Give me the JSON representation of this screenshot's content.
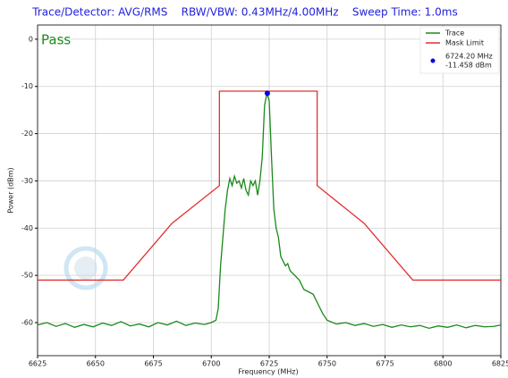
{
  "chart_data": {
    "type": "line",
    "title": "Trace/Detector: AVG/RMS    RBW/VBW: 0.43MHz/4.00MHz    Sweep Time: 1.0ms",
    "xlabel": "Frequency (MHz)",
    "ylabel": "Power (dBm)",
    "status_text": "Pass",
    "status_color": "#1e8c1e",
    "xlim": [
      6625,
      6825
    ],
    "xticks": [
      6625,
      6650,
      6675,
      6700,
      6725,
      6750,
      6775,
      6800,
      6825
    ],
    "ylim": [
      -67,
      3
    ],
    "yticks": [
      0,
      -10,
      -20,
      -30,
      -40,
      -50,
      -60
    ],
    "grid": true,
    "legend": "upper right",
    "series": [
      {
        "name": "Trace",
        "color": "#1a8a1a",
        "x": [
          6625,
          6629,
          6633,
          6637,
          6641,
          6645,
          6649,
          6653,
          6657,
          6661,
          6665,
          6669,
          6673,
          6677,
          6681,
          6685,
          6689,
          6693,
          6697,
          6700,
          6702,
          6703,
          6704,
          6705,
          6706,
          6707,
          6708,
          6709,
          6710,
          6711,
          6712,
          6713,
          6714,
          6715,
          6716,
          6717,
          6718,
          6719,
          6720,
          6721,
          6722,
          6723,
          6724,
          6725,
          6726,
          6727,
          6728,
          6729,
          6730,
          6731,
          6732,
          6733,
          6734,
          6736,
          6738,
          6740,
          6742,
          6744,
          6746,
          6748,
          6750,
          6754,
          6758,
          6762,
          6766,
          6770,
          6774,
          6778,
          6782,
          6786,
          6790,
          6794,
          6798,
          6802,
          6806,
          6810,
          6814,
          6818,
          6822,
          6825
        ],
        "values": [
          -60.5,
          -60,
          -60.8,
          -60.2,
          -61,
          -60.4,
          -60.9,
          -60.1,
          -60.6,
          -59.8,
          -60.7,
          -60.3,
          -60.9,
          -60,
          -60.5,
          -59.7,
          -60.6,
          -60.1,
          -60.4,
          -60,
          -59.5,
          -57,
          -48,
          -42,
          -36,
          -32,
          -29.5,
          -31,
          -29,
          -30.5,
          -30,
          -31.5,
          -29.5,
          -32,
          -33,
          -30,
          -31,
          -30,
          -33,
          -30,
          -25,
          -14,
          -11.5,
          -13,
          -25,
          -36,
          -40,
          -42,
          -46,
          -47,
          -48,
          -47.5,
          -49,
          -50,
          -51,
          -53,
          -53.5,
          -54,
          -56,
          -58,
          -59.5,
          -60.3,
          -60,
          -60.6,
          -60.2,
          -60.8,
          -60.4,
          -61,
          -60.5,
          -60.9,
          -60.6,
          -61.2,
          -60.7,
          -61,
          -60.5,
          -61.1,
          -60.6,
          -60.9,
          -60.8,
          -60.5
        ]
      },
      {
        "name": "Mask Limit",
        "color": "#e03030",
        "x": [
          6625,
          6662,
          6683,
          6703.5,
          6703.5,
          6745.7,
          6745.7,
          6766,
          6787,
          6825
        ],
        "values": [
          -51,
          -51,
          -39,
          -31,
          -11,
          -11,
          -31,
          -39,
          -51,
          -51
        ]
      }
    ],
    "marker": {
      "x": [
        6724.2
      ],
      "values": [
        -11.458
      ],
      "color": "#0000ee",
      "label_lines": [
        "6724.20 MHz",
        "-11.458 dBm"
      ]
    }
  }
}
